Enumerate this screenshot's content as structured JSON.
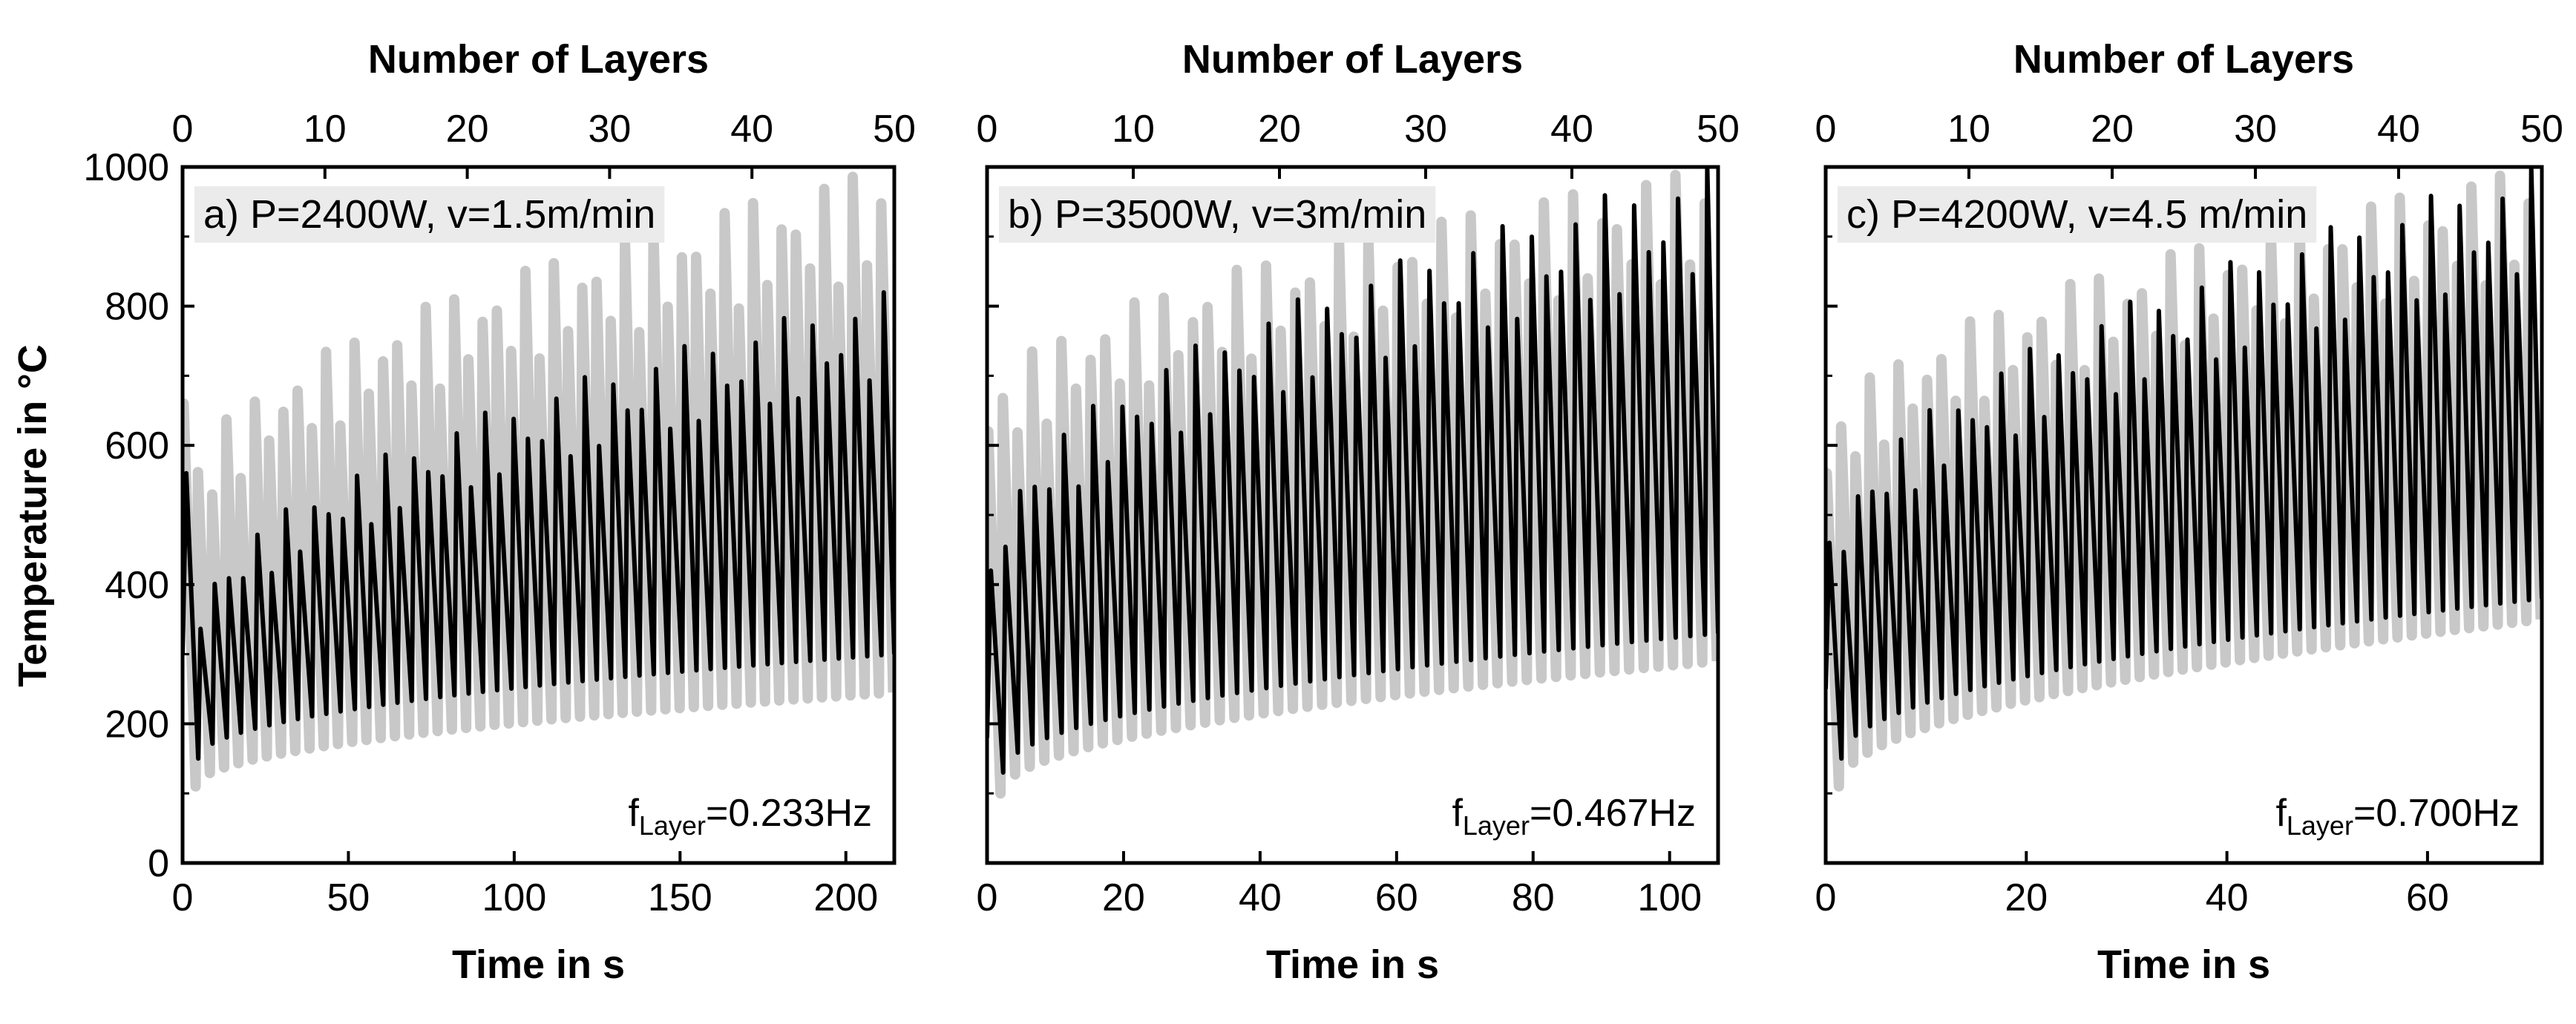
{
  "figure": {
    "y_axis_title": "Temperature in °C",
    "colors": {
      "black_series": "#000000",
      "gray_series": "#c8c8c8",
      "annotation_box": "#ebebeb"
    }
  },
  "chart_data": [
    {
      "type": "line",
      "panel_label": "a) P=2400W, v=1.5m/min",
      "frequency_label": {
        "prefix": "f",
        "subscript": "Layer",
        "value": "=0.233Hz"
      },
      "x_bottom_title": "Time in s",
      "x_top_title": "Number of Layers",
      "ylabel": "Temperature in °C",
      "xlim": [
        0,
        214.6
      ],
      "ylim": [
        0,
        1000
      ],
      "x_ticks": [
        0,
        50,
        100,
        150,
        200
      ],
      "x_top_ticks": [
        0,
        10,
        20,
        30,
        40,
        50
      ],
      "y_ticks": [
        0,
        200,
        400,
        600,
        800,
        1000
      ],
      "layers": 50,
      "series": [
        {
          "color": "gray",
          "first_peak": 660,
          "peak_start": 520,
          "peak_end": 1000,
          "min_start": 110,
          "min_end": 245,
          "start_temp": 560
        },
        {
          "color": "black",
          "first_peak": 560,
          "peak_start": 320,
          "peak_end": 820,
          "min_start": 150,
          "min_end": 300,
          "start_temp": 300
        }
      ]
    },
    {
      "type": "line",
      "panel_label": "b) P=3500W, v=3m/min",
      "frequency_label": {
        "prefix": "f",
        "subscript": "Layer",
        "value": "=0.467Hz"
      },
      "x_bottom_title": "Time in s",
      "x_top_title": "Number of Layers",
      "ylabel": "Temperature in °C",
      "xlim": [
        0,
        107.1
      ],
      "ylim": [
        0,
        1000
      ],
      "x_ticks": [
        0,
        20,
        40,
        60,
        80,
        100
      ],
      "x_top_ticks": [
        0,
        10,
        20,
        30,
        40,
        50
      ],
      "y_ticks": [
        0,
        200,
        400,
        600,
        800,
        1000
      ],
      "layers": 50,
      "series": [
        {
          "color": "gray",
          "first_peak": 620,
          "peak_start": 650,
          "peak_end": 1000,
          "min_start": 100,
          "min_end": 290,
          "start_temp": 400
        },
        {
          "color": "black",
          "first_peak": 420,
          "peak_start": 450,
          "peak_end": 1000,
          "min_start": 130,
          "min_end": 330,
          "start_temp": 180
        }
      ]
    },
    {
      "type": "line",
      "panel_label": "c) P=4200W, v=4.5 m/min",
      "frequency_label": {
        "prefix": "f",
        "subscript": "Layer",
        "value": "=0.700Hz"
      },
      "x_bottom_title": "Time in s",
      "x_top_title": "Number of Layers",
      "ylabel": "Temperature in °C",
      "xlim": [
        0,
        71.4
      ],
      "ylim": [
        0,
        1000
      ],
      "x_ticks": [
        0,
        20,
        40,
        60
      ],
      "x_top_ticks": [
        0,
        10,
        20,
        30,
        40,
        50
      ],
      "y_ticks": [
        0,
        200,
        400,
        600,
        800,
        1000
      ],
      "layers": 50,
      "series": [
        {
          "color": "gray",
          "first_peak": 560,
          "peak_start": 600,
          "peak_end": 1000,
          "min_start": 110,
          "min_end": 350,
          "start_temp": 340
        },
        {
          "color": "black",
          "first_peak": 460,
          "peak_start": 440,
          "peak_end": 1000,
          "min_start": 150,
          "min_end": 380,
          "start_temp": 250
        }
      ]
    }
  ]
}
